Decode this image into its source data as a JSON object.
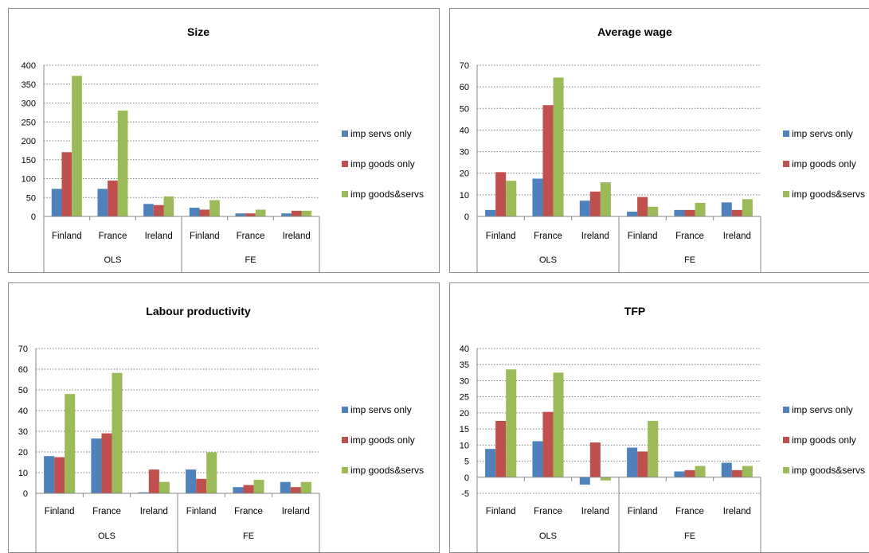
{
  "chart_data": [
    {
      "type": "bar",
      "title": "Size",
      "groups": [
        "OLS",
        "FE"
      ],
      "categories": [
        "Finland",
        "France",
        "Ireland",
        "Finland",
        "France",
        "Ireland"
      ],
      "ylim": [
        0,
        400
      ],
      "yticks": [
        0,
        50,
        100,
        150,
        200,
        250,
        300,
        350,
        400
      ],
      "grid": true,
      "legend": "right",
      "series": [
        {
          "name": "imp servs only",
          "color": "#4f81bd",
          "values": [
            73,
            73,
            33,
            23,
            8,
            8
          ]
        },
        {
          "name": "imp goods only",
          "color": "#c0504d",
          "values": [
            170,
            95,
            30,
            18,
            8,
            15
          ]
        },
        {
          "name": "imp goods&servs",
          "color": "#9bbb59",
          "values": [
            372,
            280,
            53,
            43,
            18,
            15
          ]
        }
      ]
    },
    {
      "type": "bar",
      "title": "Average wage",
      "groups": [
        "OLS",
        "FE"
      ],
      "categories": [
        "Finland",
        "France",
        "Ireland",
        "Finland",
        "France",
        "Ireland"
      ],
      "ylim": [
        0,
        70
      ],
      "yticks": [
        0,
        10,
        20,
        30,
        40,
        50,
        60,
        70
      ],
      "grid": true,
      "legend": "right",
      "series": [
        {
          "name": "imp servs only",
          "color": "#4f81bd",
          "values": [
            3,
            17.5,
            7.3,
            2.2,
            3,
            6.5
          ]
        },
        {
          "name": "imp goods only",
          "color": "#c0504d",
          "values": [
            20.5,
            51.5,
            11.5,
            9,
            3,
            3
          ]
        },
        {
          "name": "imp goods&servs",
          "color": "#9bbb59",
          "values": [
            16.5,
            64.3,
            15.8,
            4.5,
            6.3,
            8
          ]
        }
      ]
    },
    {
      "type": "bar",
      "title": "Labour productivity",
      "groups": [
        "OLS",
        "FE"
      ],
      "categories": [
        "Finland",
        "France",
        "Ireland",
        "Finland",
        "France",
        "Ireland"
      ],
      "ylim": [
        0,
        70
      ],
      "yticks": [
        0,
        10,
        20,
        30,
        40,
        50,
        60,
        70
      ],
      "grid": true,
      "legend": "right",
      "series": [
        {
          "name": "imp servs only",
          "color": "#4f81bd",
          "values": [
            18,
            26.5,
            0.5,
            11.5,
            3,
            5.5
          ]
        },
        {
          "name": "imp goods only",
          "color": "#c0504d",
          "values": [
            17.5,
            29,
            11.5,
            7,
            4,
            3
          ]
        },
        {
          "name": "imp goods&servs",
          "color": "#9bbb59",
          "values": [
            48,
            58.2,
            5.5,
            19.8,
            6.5,
            5.5
          ]
        }
      ]
    },
    {
      "type": "bar",
      "title": "TFP",
      "groups": [
        "OLS",
        "FE"
      ],
      "categories": [
        "Finland",
        "France",
        "Ireland",
        "Finland",
        "France",
        "Ireland"
      ],
      "ylim": [
        -5,
        40
      ],
      "yticks": [
        -5,
        0,
        5,
        10,
        15,
        20,
        25,
        30,
        35,
        40
      ],
      "grid": true,
      "legend": "right",
      "series": [
        {
          "name": "imp servs only",
          "color": "#4f81bd",
          "values": [
            8.8,
            11.2,
            -2.3,
            9.2,
            1.8,
            4.5
          ]
        },
        {
          "name": "imp goods only",
          "color": "#c0504d",
          "values": [
            17.5,
            20.3,
            10.8,
            8,
            2.2,
            2.2
          ]
        },
        {
          "name": "imp goods&servs",
          "color": "#9bbb59",
          "values": [
            33.5,
            32.5,
            -1,
            17.5,
            3.5,
            3.5
          ]
        }
      ]
    }
  ]
}
